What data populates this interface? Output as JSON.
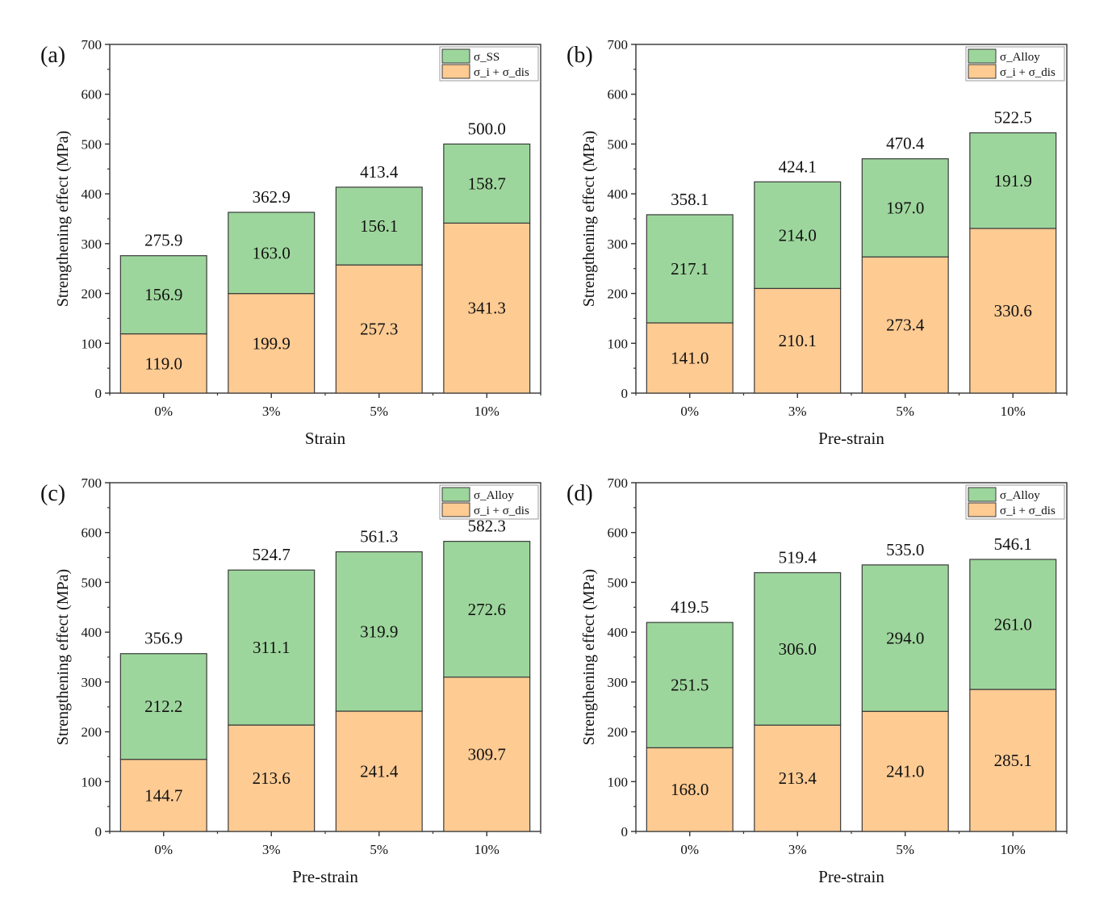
{
  "colors": {
    "upper_segment": "#9dd69c",
    "lower_segment": "#fecb93",
    "bar_stroke": "#3a3a3a",
    "axis": "#333333"
  },
  "chart_data": [
    {
      "panel_label": "(a)",
      "type": "bar",
      "stacked": true,
      "categories": [
        "0%",
        "3%",
        "5%",
        "10%"
      ],
      "xlabel": "Strain",
      "ylabel": "Strengthening effect (MPa)",
      "ylim": [
        0,
        700
      ],
      "yticks": [
        0,
        100,
        200,
        300,
        400,
        500,
        600,
        700
      ],
      "grid": false,
      "legend_position": "top-right",
      "series": [
        {
          "name": "σ_i + σ_dis",
          "values": [
            119.0,
            199.9,
            257.3,
            341.3
          ],
          "labels": [
            "119.0",
            "199.9",
            "257.3",
            "341.3"
          ]
        },
        {
          "name": "σ_SS",
          "values": [
            156.9,
            163.0,
            156.1,
            158.7
          ],
          "labels": [
            "156.9",
            "163.0",
            "156.1",
            "158.7"
          ]
        }
      ],
      "totals": [
        "275.9",
        "362.9",
        "413.4",
        "500.0"
      ]
    },
    {
      "panel_label": "(b)",
      "type": "bar",
      "stacked": true,
      "categories": [
        "0%",
        "3%",
        "5%",
        "10%"
      ],
      "xlabel": "Pre-strain",
      "ylabel": "Strengthening effect (MPa)",
      "ylim": [
        0,
        700
      ],
      "yticks": [
        0,
        100,
        200,
        300,
        400,
        500,
        600,
        700
      ],
      "grid": false,
      "legend_position": "top-right",
      "series": [
        {
          "name": "σ_i + σ_dis",
          "values": [
            141.0,
            210.1,
            273.4,
            330.6
          ],
          "labels": [
            "141.0",
            "210.1",
            "273.4",
            "330.6"
          ]
        },
        {
          "name": "σ_Alloy",
          "values": [
            217.1,
            214.0,
            197.0,
            191.9
          ],
          "labels": [
            "217.1",
            "214.0",
            "197.0",
            "191.9"
          ]
        }
      ],
      "totals": [
        "358.1",
        "424.1",
        "470.4",
        "522.5"
      ]
    },
    {
      "panel_label": "(c)",
      "type": "bar",
      "stacked": true,
      "categories": [
        "0%",
        "3%",
        "5%",
        "10%"
      ],
      "xlabel": "Pre-strain",
      "ylabel": "Strengthening effect (MPa)",
      "ylim": [
        0,
        700
      ],
      "yticks": [
        0,
        100,
        200,
        300,
        400,
        500,
        600,
        700
      ],
      "grid": false,
      "legend_position": "top-right",
      "series": [
        {
          "name": "σ_i + σ_dis",
          "values": [
            144.7,
            213.6,
            241.4,
            309.7
          ],
          "labels": [
            "144.7",
            "213.6",
            "241.4",
            "309.7"
          ]
        },
        {
          "name": "σ_Alloy",
          "values": [
            212.2,
            311.1,
            319.9,
            272.6
          ],
          "labels": [
            "212.2",
            "311.1",
            "319.9",
            "272.6"
          ]
        }
      ],
      "totals": [
        "356.9",
        "524.7",
        "561.3",
        "582.3"
      ]
    },
    {
      "panel_label": "(d)",
      "type": "bar",
      "stacked": true,
      "categories": [
        "0%",
        "3%",
        "5%",
        "10%"
      ],
      "xlabel": "Pre-strain",
      "ylabel": "Strengthening effect (MPa)",
      "ylim": [
        0,
        700
      ],
      "yticks": [
        0,
        100,
        200,
        300,
        400,
        500,
        600,
        700
      ],
      "grid": false,
      "legend_position": "top-right",
      "series": [
        {
          "name": "σ_i + σ_dis",
          "values": [
            168.0,
            213.4,
            241.0,
            285.1
          ],
          "labels": [
            "168.0",
            "213.4",
            "241.0",
            "285.1"
          ]
        },
        {
          "name": "σ_Alloy",
          "values": [
            251.5,
            306.0,
            294.0,
            261.0
          ],
          "labels": [
            "251.5",
            "306.0",
            "294.0",
            "261.0"
          ]
        }
      ],
      "totals": [
        "419.5",
        "519.4",
        "535.0",
        "546.1"
      ]
    }
  ]
}
